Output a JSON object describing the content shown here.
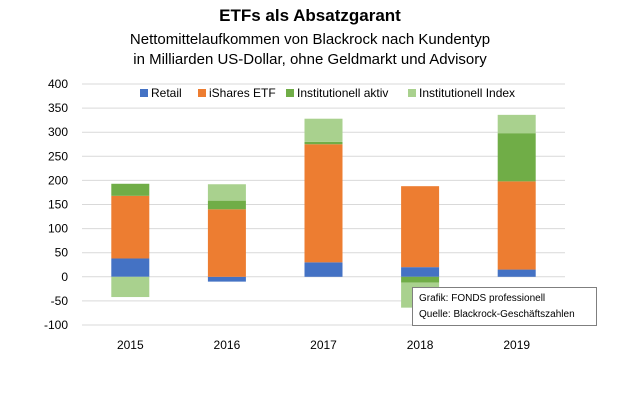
{
  "chart_data": {
    "type": "bar",
    "stacked": true,
    "title": "ETFs als Absatzgarant",
    "subtitle_lines": [
      "Nettomittelaufkommen von Blackrock nach Kundentyp",
      "in Milliarden US-Dollar, ohne Geldmarkt und Advisory"
    ],
    "categories": [
      "2015",
      "2016",
      "2017",
      "2018",
      "2019"
    ],
    "series": [
      {
        "name": "Retail",
        "color": "#4472c4",
        "values": [
          38,
          -10,
          30,
          20,
          15
        ]
      },
      {
        "name": "iShares ETF",
        "color": "#ed7d31",
        "values": [
          130,
          140,
          245,
          168,
          183
        ]
      },
      {
        "name": "Institutionell aktiv",
        "color": "#70ad47",
        "values": [
          25,
          18,
          5,
          -12,
          100
        ]
      },
      {
        "name": "Institutionell Index",
        "color": "#a9d18e",
        "values": [
          -42,
          34,
          48,
          -52,
          38
        ]
      }
    ],
    "ylim": [
      -100,
      400
    ],
    "yticks": [
      "400",
      "350",
      "300",
      "250",
      "200",
      "150",
      "100",
      "50",
      "0",
      "-50",
      "-100"
    ],
    "grid": true,
    "legend_position": "top"
  },
  "note": {
    "line1": "Grafik: FONDS professionell",
    "line2": "Quelle: Blackrock-Geschäftszahlen"
  }
}
